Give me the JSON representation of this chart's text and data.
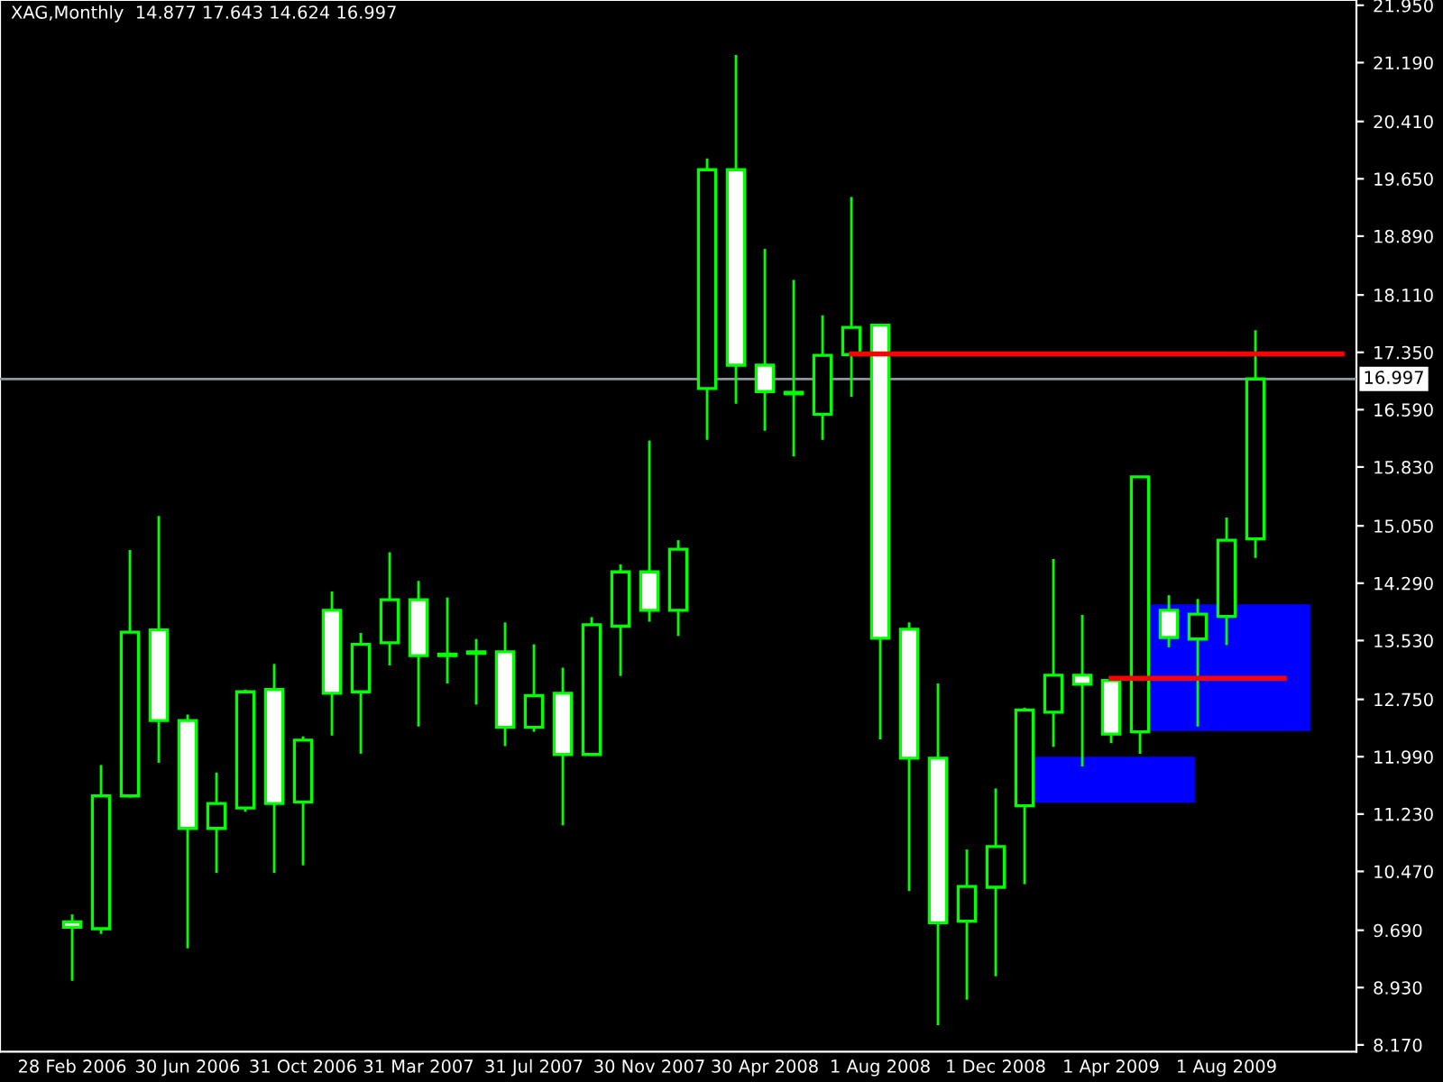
{
  "chart_data": {
    "type": "candlestick",
    "title": "XAG,Monthly  14.877 17.643 14.624 16.997",
    "categories": [
      "28 Feb 2006",
      null,
      null,
      null,
      "30 Jun 2006",
      null,
      null,
      null,
      "31 Oct 2006",
      null,
      null,
      null,
      "31 Mar 2007",
      null,
      null,
      null,
      "31 Jul 2007",
      null,
      null,
      null,
      "30 Nov 2007",
      null,
      null,
      null,
      "30 Apr 2008",
      null,
      null,
      null,
      "1 Aug 2008",
      null,
      null,
      null,
      "1 Dec 2008",
      null,
      null,
      null,
      "1 Apr 2009",
      null,
      null,
      null,
      "1 Aug 2009",
      null,
      null,
      null,
      null
    ],
    "ohlc": [
      [
        9.8,
        9.9,
        9.02,
        9.73
      ],
      [
        9.71,
        11.88,
        9.64,
        11.47
      ],
      [
        11.47,
        14.73,
        11.45,
        13.64
      ],
      [
        13.67,
        15.18,
        11.91,
        12.47
      ],
      [
        12.47,
        12.55,
        9.45,
        11.04
      ],
      [
        11.04,
        11.78,
        10.45,
        11.37
      ],
      [
        11.31,
        12.88,
        11.26,
        12.85
      ],
      [
        12.88,
        13.22,
        10.45,
        11.37
      ],
      [
        11.39,
        12.26,
        10.55,
        12.21
      ],
      [
        13.93,
        14.18,
        12.27,
        12.83
      ],
      [
        12.85,
        13.63,
        12.03,
        13.48
      ],
      [
        13.5,
        14.7,
        13.2,
        14.07
      ],
      [
        14.07,
        14.32,
        12.39,
        13.33
      ],
      [
        13.35,
        14.1,
        12.96,
        13.33
      ],
      [
        13.36,
        13.55,
        12.68,
        13.37
      ],
      [
        13.38,
        13.77,
        12.13,
        12.38
      ],
      [
        12.38,
        13.48,
        12.32,
        12.8
      ],
      [
        12.83,
        13.17,
        11.08,
        12.02
      ],
      [
        12.02,
        13.84,
        12.0,
        13.74
      ],
      [
        13.72,
        14.54,
        13.06,
        14.44
      ],
      [
        14.44,
        16.18,
        13.78,
        13.93
      ],
      [
        13.93,
        14.86,
        13.59,
        14.74
      ],
      [
        16.87,
        19.92,
        16.19,
        19.77
      ],
      [
        19.77,
        21.29,
        16.67,
        17.18
      ],
      [
        17.18,
        18.72,
        16.31,
        16.83
      ],
      [
        16.8,
        18.31,
        15.97,
        16.81
      ],
      [
        16.53,
        17.84,
        16.19,
        17.31
      ],
      [
        17.32,
        19.41,
        16.76,
        17.68
      ],
      [
        17.71,
        17.73,
        12.22,
        13.56
      ],
      [
        13.68,
        13.77,
        10.21,
        11.97
      ],
      [
        11.97,
        12.96,
        8.43,
        9.79
      ],
      [
        9.81,
        10.76,
        8.77,
        10.27
      ],
      [
        10.26,
        11.57,
        9.08,
        10.8
      ],
      [
        11.34,
        12.64,
        10.3,
        12.61
      ],
      [
        12.58,
        14.61,
        12.12,
        13.07
      ],
      [
        13.07,
        13.87,
        11.86,
        12.95
      ],
      [
        13.0,
        13.05,
        12.17,
        12.29
      ],
      [
        12.32,
        15.7,
        12.03,
        15.7
      ],
      [
        13.93,
        14.13,
        13.44,
        13.57
      ],
      [
        13.55,
        14.08,
        12.39,
        13.88
      ],
      [
        13.85,
        15.16,
        13.47,
        14.86
      ],
      [
        14.877,
        17.643,
        14.624,
        16.997
      ],
      null,
      null,
      null
    ],
    "series": [
      {
        "type": "line",
        "color": "#ff0000",
        "values": [
          null,
          null,
          null,
          null,
          null,
          null,
          null,
          null,
          null,
          null,
          null,
          null,
          null,
          null,
          null,
          null,
          null,
          null,
          null,
          null,
          null,
          null,
          null,
          null,
          null,
          null,
          null,
          17.33,
          17.33,
          17.33,
          17.33,
          17.33,
          17.33,
          17.33,
          17.33,
          17.33,
          17.33,
          17.33,
          17.33,
          17.33,
          17.33,
          17.33,
          17.33,
          17.33,
          17.33
        ]
      },
      {
        "type": "line",
        "color": "#ff0000",
        "values": [
          null,
          null,
          null,
          null,
          null,
          null,
          null,
          null,
          null,
          null,
          null,
          null,
          null,
          null,
          null,
          null,
          null,
          null,
          null,
          null,
          null,
          null,
          null,
          null,
          null,
          null,
          null,
          null,
          null,
          null,
          null,
          null,
          null,
          null,
          null,
          null,
          13.03,
          13.03,
          13.03,
          13.03,
          13.03,
          13.03,
          13.03,
          null,
          null
        ]
      }
    ],
    "bands": [
      {
        "axis": "y",
        "from": 11.38,
        "to": 11.99,
        "color": "#0000ff"
      },
      {
        "axis": "y",
        "from": 12.33,
        "to": 14.01,
        "color": "#0000ff"
      }
    ],
    "ref_lines": [
      {
        "axis": "y",
        "value": 16.997,
        "label": "16.997",
        "color": "#8c96a0"
      }
    ],
    "ylim": [
      8.08,
      22.02
    ],
    "yticks": [
      {
        "value": 8.17,
        "label": "8.170"
      },
      {
        "value": 8.93,
        "label": "8.930"
      },
      {
        "value": 9.69,
        "label": "9.690"
      },
      {
        "value": 10.47,
        "label": "10.470"
      },
      {
        "value": 11.23,
        "label": "11.230"
      },
      {
        "value": 11.99,
        "label": "11.990"
      },
      {
        "value": 12.75,
        "label": "12.750"
      },
      {
        "value": 13.53,
        "label": "13.530"
      },
      {
        "value": 14.29,
        "label": "14.290"
      },
      {
        "value": 15.05,
        "label": "15.050"
      },
      {
        "value": 15.83,
        "label": "15.830"
      },
      {
        "value": 16.59,
        "label": "16.590"
      },
      {
        "value": 17.35,
        "label": "17.350"
      },
      {
        "value": 18.11,
        "label": "18.110"
      },
      {
        "value": 18.89,
        "label": "18.890"
      },
      {
        "value": 19.65,
        "label": "19.650"
      },
      {
        "value": 20.41,
        "label": "20.410"
      },
      {
        "value": 21.19,
        "label": "21.190"
      },
      {
        "value": 21.95,
        "label": "21.950"
      }
    ],
    "grid": false,
    "legend": false
  }
}
